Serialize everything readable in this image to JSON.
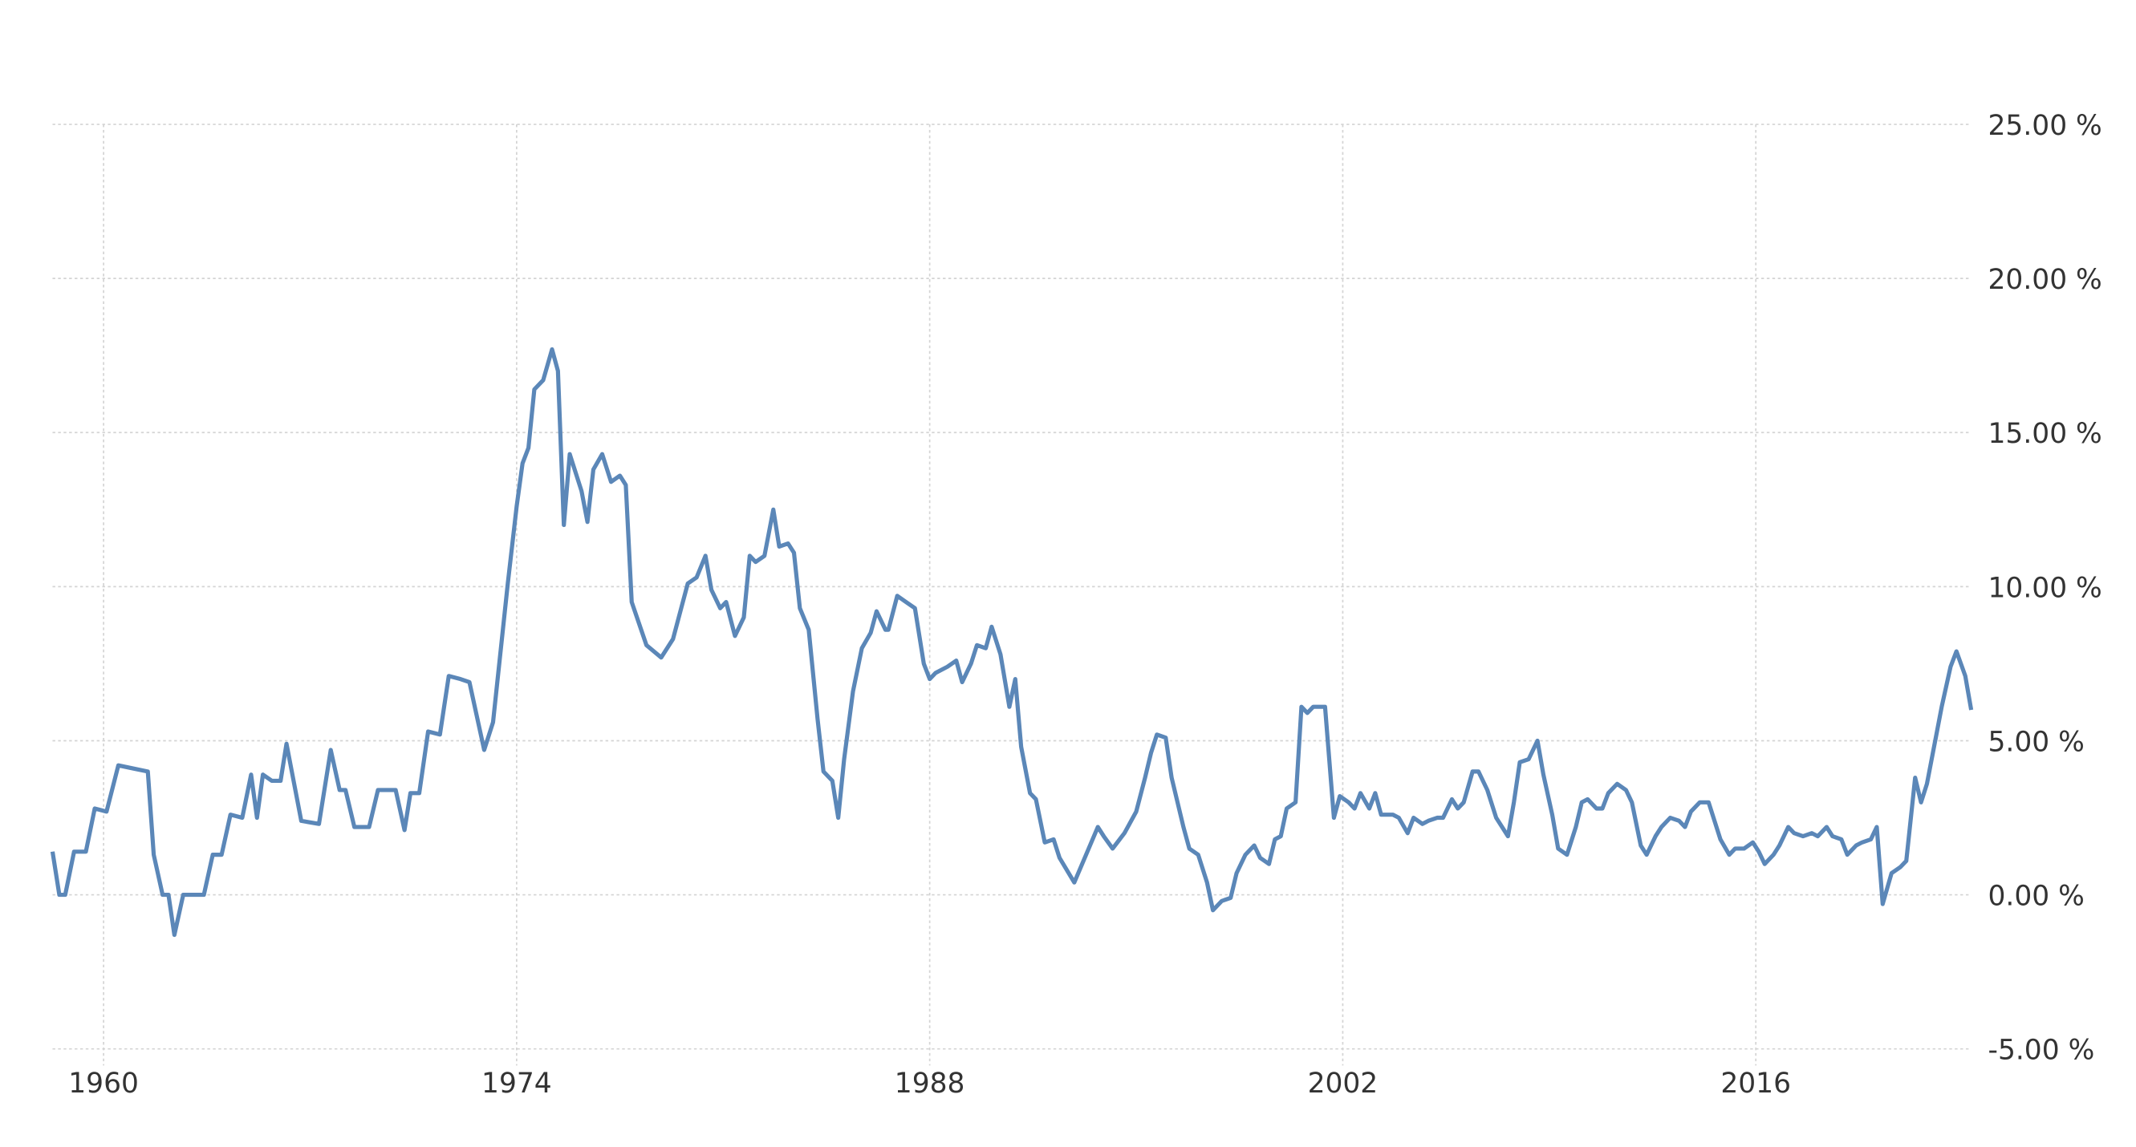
{
  "chart_data": {
    "type": "line",
    "x": [
      1958.27,
      1958.5,
      1958.7,
      1959.0,
      1959.4,
      1959.7,
      1960.1,
      1960.5,
      1961.0,
      1961.5,
      1961.7,
      1962.0,
      1962.2,
      1962.4,
      1962.7,
      1963.4,
      1963.7,
      1964.0,
      1964.3,
      1964.7,
      1965.0,
      1965.2,
      1965.4,
      1965.7,
      1966.0,
      1966.2,
      1966.7,
      1967.3,
      1967.7,
      1968.0,
      1968.2,
      1968.5,
      1969.0,
      1969.3,
      1969.9,
      1970.2,
      1970.4,
      1970.7,
      1971.0,
      1971.4,
      1971.7,
      1972.1,
      1972.4,
      1972.9,
      1973.2,
      1973.5,
      1973.7,
      1974.0,
      1974.2,
      1974.4,
      1974.6,
      1974.9,
      1975.2,
      1975.4,
      1975.6,
      1975.8,
      1976.2,
      1976.4,
      1976.6,
      1976.9,
      1977.2,
      1977.5,
      1977.7,
      1977.9,
      1978.4,
      1978.9,
      1979.3,
      1979.8,
      1980.1,
      1980.4,
      1980.6,
      1980.9,
      1981.1,
      1981.4,
      1981.7,
      1981.9,
      1982.1,
      1982.4,
      1982.7,
      1982.9,
      1983.2,
      1983.4,
      1983.6,
      1983.9,
      1984.2,
      1984.4,
      1984.7,
      1984.9,
      1985.1,
      1985.4,
      1985.7,
      1986.0,
      1986.2,
      1986.5,
      1986.6,
      1986.9,
      1987.2,
      1987.5,
      1987.8,
      1988.0,
      1988.2,
      1988.6,
      1988.9,
      1989.1,
      1989.4,
      1989.6,
      1989.9,
      1990.1,
      1990.4,
      1990.7,
      1990.9,
      1991.1,
      1991.4,
      1991.6,
      1991.9,
      1992.2,
      1992.4,
      1992.9,
      1993.3,
      1993.7,
      1993.9,
      1994.2,
      1994.6,
      1995.0,
      1995.3,
      1995.5,
      1995.7,
      1996.0,
      1996.2,
      1996.4,
      1996.6,
      1996.8,
      1997.1,
      1997.4,
      1997.6,
      1997.9,
      1998.2,
      1998.4,
      1998.7,
      1999.0,
      1999.2,
      1999.5,
      1999.7,
      1999.9,
      2000.1,
      2000.4,
      2000.6,
      2000.8,
      2001.0,
      2001.4,
      2001.7,
      2001.9,
      2002.2,
      2002.4,
      2002.6,
      2002.9,
      2003.1,
      2003.3,
      2003.7,
      2003.9,
      2004.2,
      2004.4,
      2004.7,
      2004.9,
      2005.2,
      2005.4,
      2005.7,
      2005.9,
      2006.1,
      2006.4,
      2006.6,
      2006.9,
      2007.2,
      2007.6,
      2007.8,
      2008.0,
      2008.3,
      2008.6,
      2008.8,
      2009.1,
      2009.3,
      2009.6,
      2009.9,
      2010.1,
      2010.3,
      2010.6,
      2010.8,
      2011.0,
      2011.3,
      2011.6,
      2011.8,
      2012.1,
      2012.3,
      2012.6,
      2012.8,
      2013.1,
      2013.4,
      2013.6,
      2013.8,
      2014.1,
      2014.4,
      2014.6,
      2014.8,
      2015.1,
      2015.3,
      2015.6,
      2015.9,
      2016.1,
      2016.3,
      2016.6,
      2016.8,
      2017.1,
      2017.3,
      2017.6,
      2017.9,
      2018.1,
      2018.4,
      2018.6,
      2018.9,
      2019.1,
      2019.4,
      2019.6,
      2019.9,
      2020.1,
      2020.3,
      2020.6,
      2020.9,
      2021.1,
      2021.4,
      2021.6,
      2021.8,
      2022.1,
      2022.3,
      2022.6,
      2022.8,
      2023.1,
      2023.3
    ],
    "series": [
      {
        "color": "#5b87b8",
        "values": [
          1.4,
          0,
          0,
          1.4,
          1.4,
          2.8,
          2.7,
          4.2,
          4.1,
          4.0,
          1.3,
          0,
          0,
          -1.3,
          0,
          0,
          1.3,
          1.3,
          2.6,
          2.5,
          3.9,
          2.5,
          3.9,
          3.7,
          3.7,
          4.9,
          2.4,
          2.3,
          4.7,
          3.4,
          3.4,
          2.2,
          2.2,
          3.4,
          3.4,
          2.1,
          3.3,
          3.3,
          5.3,
          5.2,
          7.1,
          7.0,
          6.9,
          4.7,
          5.6,
          8.3,
          10.1,
          12.6,
          14.0,
          14.5,
          16.4,
          16.7,
          17.7,
          17.0,
          12.0,
          14.3,
          13.1,
          12.1,
          13.8,
          14.3,
          13.4,
          13.6,
          13.3,
          9.5,
          8.1,
          7.7,
          8.3,
          10.1,
          10.3,
          11.0,
          9.9,
          9.3,
          9.5,
          8.4,
          9.0,
          11.0,
          10.8,
          11.0,
          12.5,
          11.3,
          11.4,
          11.1,
          9.3,
          8.6,
          5.7,
          4.0,
          3.7,
          2.5,
          4.4,
          6.6,
          8.0,
          8.5,
          9.2,
          8.6,
          8.6,
          9.7,
          9.5,
          9.3,
          7.5,
          7.0,
          7.2,
          7.4,
          7.6,
          6.9,
          7.5,
          8.1,
          8.0,
          8.7,
          7.8,
          6.1,
          7.0,
          4.8,
          3.3,
          3.1,
          1.7,
          1.8,
          1.2,
          0.4,
          1.3,
          2.2,
          1.9,
          1.5,
          2.0,
          2.7,
          3.8,
          4.6,
          5.2,
          5.1,
          3.8,
          3.0,
          2.2,
          1.5,
          1.3,
          0.4,
          -0.5,
          -0.2,
          -0.1,
          0.7,
          1.3,
          1.6,
          1.2,
          1.0,
          1.8,
          1.9,
          2.8,
          3.0,
          6.1,
          5.9,
          6.1,
          6.1,
          2.5,
          3.2,
          3.0,
          2.8,
          3.3,
          2.8,
          3.3,
          2.6,
          2.6,
          2.5,
          2.0,
          2.5,
          2.3,
          2.4,
          2.5,
          2.5,
          3.1,
          2.8,
          3.0,
          4.0,
          4.0,
          3.4,
          2.5,
          1.9,
          3.0,
          4.3,
          4.4,
          5.0,
          3.9,
          2.6,
          1.5,
          1.3,
          2.2,
          3.0,
          3.1,
          2.8,
          2.8,
          3.3,
          3.6,
          3.4,
          3.0,
          1.6,
          1.3,
          1.9,
          2.2,
          2.5,
          2.4,
          2.2,
          2.7,
          3.0,
          3.0,
          2.4,
          1.8,
          1.3,
          1.5,
          1.5,
          1.7,
          1.4,
          1.0,
          1.3,
          1.6,
          2.2,
          2.0,
          1.9,
          2.0,
          1.9,
          2.2,
          1.9,
          1.8,
          1.3,
          1.6,
          1.7,
          1.8,
          2.2,
          -0.3,
          0.7,
          0.9,
          1.1,
          3.8,
          3.0,
          3.6,
          5.1,
          6.1,
          7.4,
          7.9,
          7.1,
          6.0
        ]
      }
    ],
    "xlim": [
      1958.27,
      2023.4
    ],
    "xticks": [
      1960,
      1974,
      1988,
      2002,
      2016
    ],
    "ylim": [
      -5,
      25
    ],
    "yticks": [
      {
        "value": -5,
        "label": "-5.00 %"
      },
      {
        "value": 0,
        "label": "0.00 %"
      },
      {
        "value": 5,
        "label": "5.00 %"
      },
      {
        "value": 10,
        "label": "10.00 %"
      },
      {
        "value": 15,
        "label": "15.00 %"
      },
      {
        "value": 20,
        "label": "20.00 %"
      },
      {
        "value": 25,
        "label": "25.00 %"
      }
    ],
    "grid": true
  }
}
